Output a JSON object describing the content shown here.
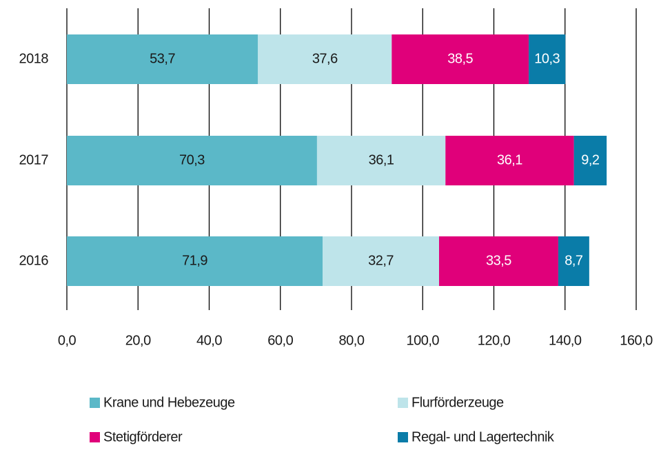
{
  "chart_data": {
    "type": "stacked_barh",
    "categories": [
      "2018",
      "2017",
      "2016"
    ],
    "series": [
      {
        "name": "Krane und Hebezeuge",
        "color": "#5bb8c8",
        "label_color": "#1a1a1a",
        "values": [
          53.7,
          70.3,
          71.9
        ],
        "value_labels": [
          "53,7",
          "70,3",
          "71,9"
        ]
      },
      {
        "name": "Flurförderzeuge",
        "color": "#bee4ea",
        "label_color": "#1a1a1a",
        "values": [
          37.6,
          36.1,
          32.7
        ],
        "value_labels": [
          "37,6",
          "36,1",
          "32,7"
        ]
      },
      {
        "name": "Stetigförderer",
        "color": "#e0007a",
        "label_color": "#ffffff",
        "values": [
          38.5,
          36.1,
          33.5
        ],
        "value_labels": [
          "38,5",
          "36,1",
          "33,5"
        ]
      },
      {
        "name": "Regal- und Lagertechnik",
        "color": "#0a7ca8",
        "label_color": "#ffffff",
        "values": [
          10.3,
          9.2,
          8.7
        ],
        "value_labels": [
          "10,3",
          "9,2",
          "8,7"
        ]
      }
    ],
    "xlim": [
      0,
      160
    ],
    "xticks": [
      {
        "value": 0,
        "label": "0,0"
      },
      {
        "value": 20,
        "label": "20,0"
      },
      {
        "value": 40,
        "label": "40,0"
      },
      {
        "value": 60,
        "label": "60,0"
      },
      {
        "value": 80,
        "label": "80,0"
      },
      {
        "value": 100,
        "label": "100,0"
      },
      {
        "value": 120,
        "label": "120,0"
      },
      {
        "value": 140,
        "label": "140,0"
      },
      {
        "value": 160,
        "label": "160,0"
      }
    ],
    "grid": true,
    "legend": "bottom"
  }
}
